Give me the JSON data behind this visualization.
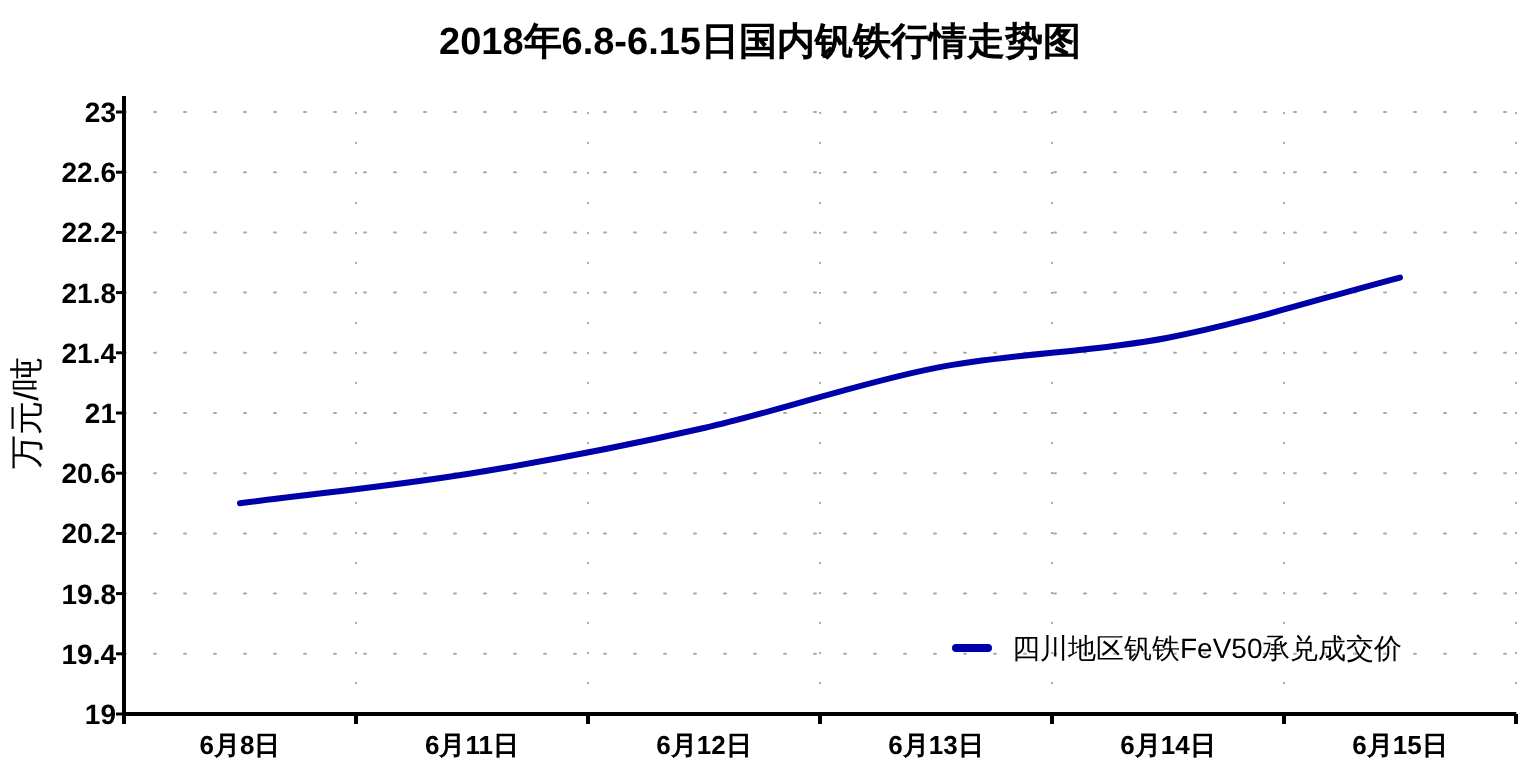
{
  "chart_data": {
    "type": "line",
    "title": "2018年6.8-6.15日国内钒铁行情走势图",
    "ylabel": "万元/吨",
    "categories": [
      "6月8日",
      "6月11日",
      "6月12日",
      "6月13日",
      "6月14日",
      "6月15日"
    ],
    "series": [
      {
        "name": "四川地区钒铁FeV50承兑成交价",
        "color": "#0000aa",
        "values": [
          20.4,
          20.6,
          20.9,
          21.3,
          21.5,
          21.9
        ]
      }
    ],
    "ylim": [
      19,
      23
    ],
    "yticks": [
      19,
      19.4,
      19.8,
      20.2,
      20.6,
      21,
      21.4,
      21.8,
      22.2,
      22.6,
      23
    ],
    "grid": true,
    "legend": "bottom right",
    "marker": "none",
    "line_style": "solid"
  }
}
